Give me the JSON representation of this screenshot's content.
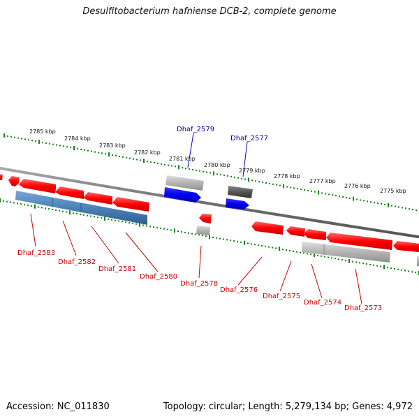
{
  "title": "Desulfitobacterium hafniense DCB-2, complete genome",
  "footer": {
    "accession": "Accession: NC_011830",
    "summary": "Topology: circular; Length: 5,279,134 bp; Genes: 4,972"
  },
  "colors": {
    "forward_gene": "#ff0000",
    "reverse_gene": "#0000ee",
    "rna_feature": "#4a82b8",
    "pseudo_feature": "#aaaaaa",
    "dark_feature": "#555555",
    "tick": "#118811",
    "backbone": "#777777",
    "upper_label": "#000099",
    "lower_label": "#cc0000"
  },
  "scale_labels": [
    "2785 kbp",
    "2784 kbp",
    "2783 kbp",
    "2782 kbp",
    "2781 kbp",
    "2780 kbp",
    "2779 kbp",
    "2778 kbp",
    "2777 kbp",
    "2776 kbp",
    "2775 kbp"
  ],
  "upper_gene_labels": [
    "Dhaf_2579",
    "Dhaf_2577"
  ],
  "lower_gene_labels": [
    "Dhaf_2583",
    "Dhaf_2582",
    "Dhaf_2581",
    "Dhaf_2580",
    "Dhaf_2578",
    "Dhaf_2576",
    "Dhaf_2575",
    "Dhaf_2574",
    "Dhaf_2573"
  ]
}
